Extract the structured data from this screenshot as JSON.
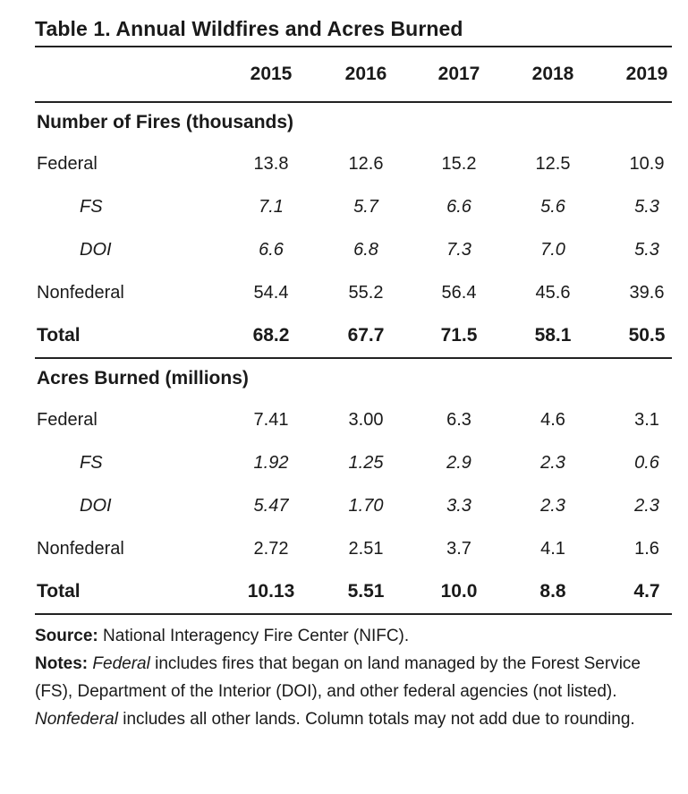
{
  "title": "Table 1. Annual Wildfires and Acres Burned",
  "years": [
    "2015",
    "2016",
    "2017",
    "2018",
    "2019"
  ],
  "sections": [
    {
      "heading": "Number of Fires (thousands)",
      "rows": [
        {
          "label": "Federal",
          "values": [
            "13.8",
            "12.6",
            "15.2",
            "12.5",
            "10.9"
          ],
          "style": "normal"
        },
        {
          "label": "FS",
          "values": [
            "7.1",
            "5.7",
            "6.6",
            "5.6",
            "5.3"
          ],
          "style": "indent"
        },
        {
          "label": "DOI",
          "values": [
            "6.6",
            "6.8",
            "7.3",
            "7.0",
            "5.3"
          ],
          "style": "indent"
        },
        {
          "label": "Nonfederal",
          "values": [
            "54.4",
            "55.2",
            "56.4",
            "45.6",
            "39.6"
          ],
          "style": "normal"
        },
        {
          "label": "Total",
          "values": [
            "68.2",
            "67.7",
            "71.5",
            "58.1",
            "50.5"
          ],
          "style": "total"
        }
      ]
    },
    {
      "heading": "Acres Burned (millions)",
      "rows": [
        {
          "label": "Federal",
          "values": [
            "7.41",
            "3.00",
            "6.3",
            "4.6",
            "3.1"
          ],
          "style": "normal"
        },
        {
          "label": "FS",
          "values": [
            "1.92",
            "1.25",
            "2.9",
            "2.3",
            "0.6"
          ],
          "style": "indent"
        },
        {
          "label": "DOI",
          "values": [
            "5.47",
            "1.70",
            "3.3",
            "2.3",
            "2.3"
          ],
          "style": "indent"
        },
        {
          "label": "Nonfederal",
          "values": [
            "2.72",
            "2.51",
            "3.7",
            "4.1",
            "1.6"
          ],
          "style": "normal"
        },
        {
          "label": "Total",
          "values": [
            "10.13",
            "5.51",
            "10.0",
            "8.8",
            "4.7"
          ],
          "style": "total"
        }
      ]
    }
  ],
  "source": {
    "label": "Source:",
    "text": "National Interagency Fire Center (NIFC)."
  },
  "notes": {
    "label": "Notes:",
    "federal_term": "Federal",
    "federal_text": "includes fires that began on land managed by the Forest Service (FS), Department of the Interior (DOI), and other federal agencies (not listed).",
    "nonfederal_term": "Nonfederal",
    "nonfederal_text": "includes all other lands. Column totals may not add due to rounding."
  }
}
